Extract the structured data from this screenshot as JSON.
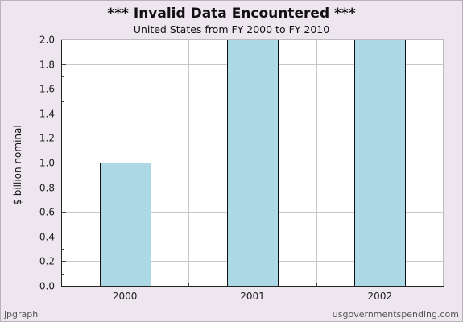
{
  "chart_data": {
    "type": "bar",
    "title": "*** Invalid Data Encountered ***",
    "subtitle": "United States from FY 2000 to FY 2010",
    "xlabel": "",
    "ylabel": "$ billion nominal",
    "categories": [
      "2000",
      "2001",
      "2002"
    ],
    "values": [
      1.0,
      2.0,
      2.0
    ],
    "ylim": [
      0,
      2.0
    ],
    "yticks": [
      0.0,
      0.2,
      0.4,
      0.6,
      0.8,
      1.0,
      1.2,
      1.4,
      1.6,
      1.8,
      2.0
    ],
    "ytick_labels": [
      "0.0",
      "0.2",
      "0.4",
      "0.6",
      "0.8",
      "1.0",
      "1.2",
      "1.4",
      "1.6",
      "1.8",
      "2.0"
    ],
    "grid": true,
    "bar_color": "#add8e6",
    "plot_background": "#ffffff",
    "page_background": "#ede6ef"
  },
  "footer": {
    "left": "jpgraph",
    "right": "usgovernmentspending.com"
  }
}
